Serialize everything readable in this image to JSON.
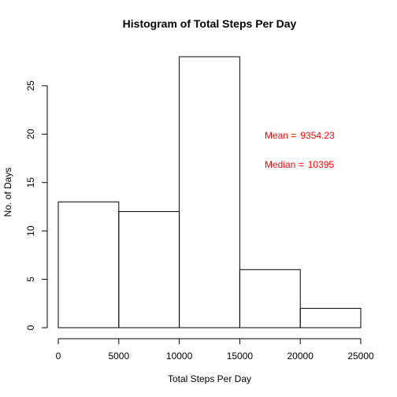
{
  "chart_data": {
    "type": "histogram",
    "title": "Histogram of Total Steps Per Day",
    "xlabel": "Total Steps Per Day",
    "ylabel": "No. of Days",
    "bins": [
      {
        "start": 0,
        "end": 5000,
        "count": 13
      },
      {
        "start": 5000,
        "end": 10000,
        "count": 12
      },
      {
        "start": 10000,
        "end": 15000,
        "count": 28
      },
      {
        "start": 15000,
        "end": 20000,
        "count": 6
      },
      {
        "start": 20000,
        "end": 25000,
        "count": 2
      }
    ],
    "xlim": [
      0,
      25000
    ],
    "ylim": [
      0,
      28
    ],
    "x_ticks": [
      0,
      5000,
      10000,
      15000,
      20000,
      25000
    ],
    "y_ticks": [
      0,
      5,
      10,
      15,
      20,
      25
    ],
    "grid": false,
    "annotations": [
      {
        "label": "Mean =",
        "value": "9354.23",
        "color": "#ff0000"
      },
      {
        "label": "Median =",
        "value": "10395",
        "color": "#ff0000"
      }
    ]
  }
}
